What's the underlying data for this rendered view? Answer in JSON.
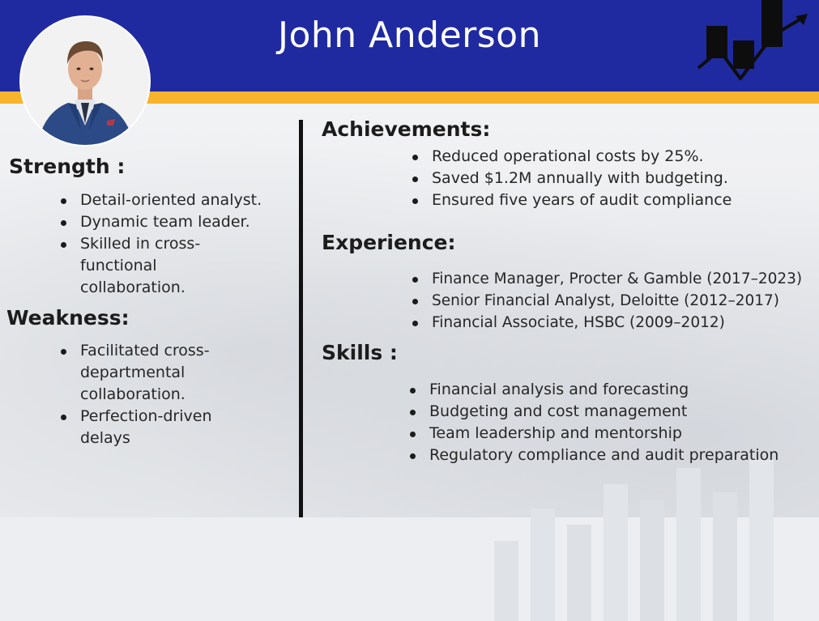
{
  "header": {
    "name": "John Anderson"
  },
  "left": {
    "strength": {
      "heading": "Strength :",
      "items": [
        "Detail-oriented analyst.",
        "Dynamic team leader.",
        "Skilled in cross-functional collaboration."
      ]
    },
    "weakness": {
      "heading": "Weakness:",
      "items": [
        "Facilitated cross-departmental collaboration.",
        "Perfection-driven delays"
      ]
    }
  },
  "right": {
    "achievements": {
      "heading": "Achievements:",
      "items": [
        "Reduced operational costs by 25%.",
        "Saved $1.2M annually with budgeting.",
        "Ensured five years of audit compliance"
      ]
    },
    "experience": {
      "heading": "Experience:",
      "items": [
        "Finance Manager, Procter & Gamble (2017–2023)",
        "Senior Financial Analyst, Deloitte (2012–2017)",
        "Financial Associate, HSBC (2009–2012)"
      ]
    },
    "skills": {
      "heading": "Skills :",
      "items": [
        "Financial analysis and forecasting",
        "Budgeting and cost management",
        "Team leadership and mentorship",
        "Regulatory compliance and audit preparation"
      ]
    }
  },
  "colors": {
    "header_blue": "#1f2aa0",
    "accent_gold": "#f7b42c",
    "background": "#eceef1"
  },
  "icons": {
    "profile": "profile-photo",
    "growth": "growth-chart-icon"
  }
}
